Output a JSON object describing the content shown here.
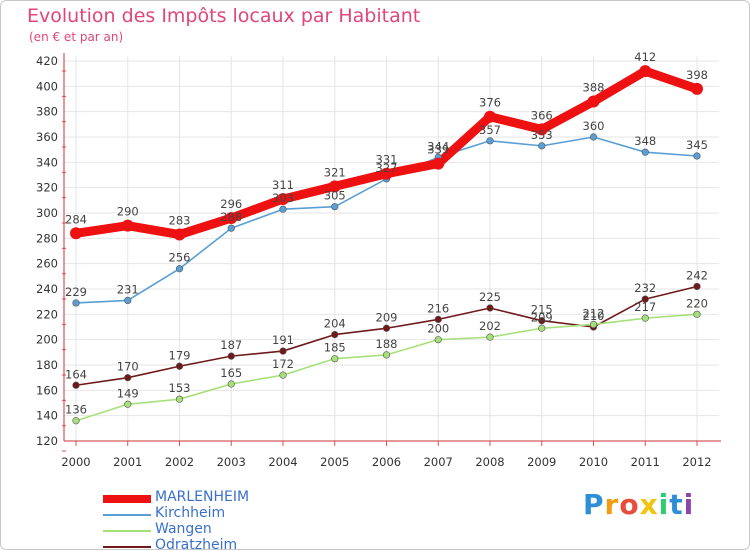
{
  "header": {
    "title": "Evolution des Impôts locaux par Habitant",
    "subtitle": "(en € et par an)"
  },
  "brand": {
    "letters": [
      "P",
      "r",
      "o",
      "x",
      "i",
      "t",
      "i"
    ],
    "colors": [
      "#2f8fd6",
      "#f39c12",
      "#e74c3c",
      "#f1c40f",
      "#2ecc71",
      "#2f8fd6",
      "#8e44ad"
    ]
  },
  "chart_data": {
    "type": "line",
    "title": "Evolution des Impôts locaux par Habitant",
    "subtitle": "(en € et par an)",
    "xlabel": "",
    "ylabel": "",
    "x": [
      "2000",
      "2001",
      "2002",
      "2003",
      "2004",
      "2005",
      "2006",
      "2007",
      "2008",
      "2009",
      "2010",
      "2011",
      "2012"
    ],
    "ylim": [
      120,
      420
    ],
    "yticks": [
      120,
      140,
      160,
      180,
      200,
      220,
      240,
      260,
      280,
      300,
      320,
      340,
      360,
      380,
      400,
      420
    ],
    "grid": true,
    "legend_position": "bottom-left",
    "series": [
      {
        "name": "MARLENHEIM",
        "color": "#ee1111",
        "values": [
          284,
          290,
          283,
          296,
          311,
          321,
          331,
          339,
          376,
          366,
          388,
          412,
          398
        ]
      },
      {
        "name": "Kirchheim",
        "color": "#5a9fd4",
        "values": [
          229,
          231,
          256,
          288,
          303,
          305,
          327,
          344,
          357,
          353,
          360,
          348,
          345
        ]
      },
      {
        "name": "Wangen",
        "color": "#a6e07a",
        "values": [
          136,
          149,
          153,
          165,
          172,
          185,
          188,
          200,
          202,
          209,
          212,
          217,
          220
        ]
      },
      {
        "name": "Odratzheim",
        "color": "#6e1a1a",
        "values": [
          164,
          170,
          179,
          187,
          191,
          204,
          209,
          216,
          225,
          215,
          210,
          232,
          242
        ]
      }
    ]
  }
}
